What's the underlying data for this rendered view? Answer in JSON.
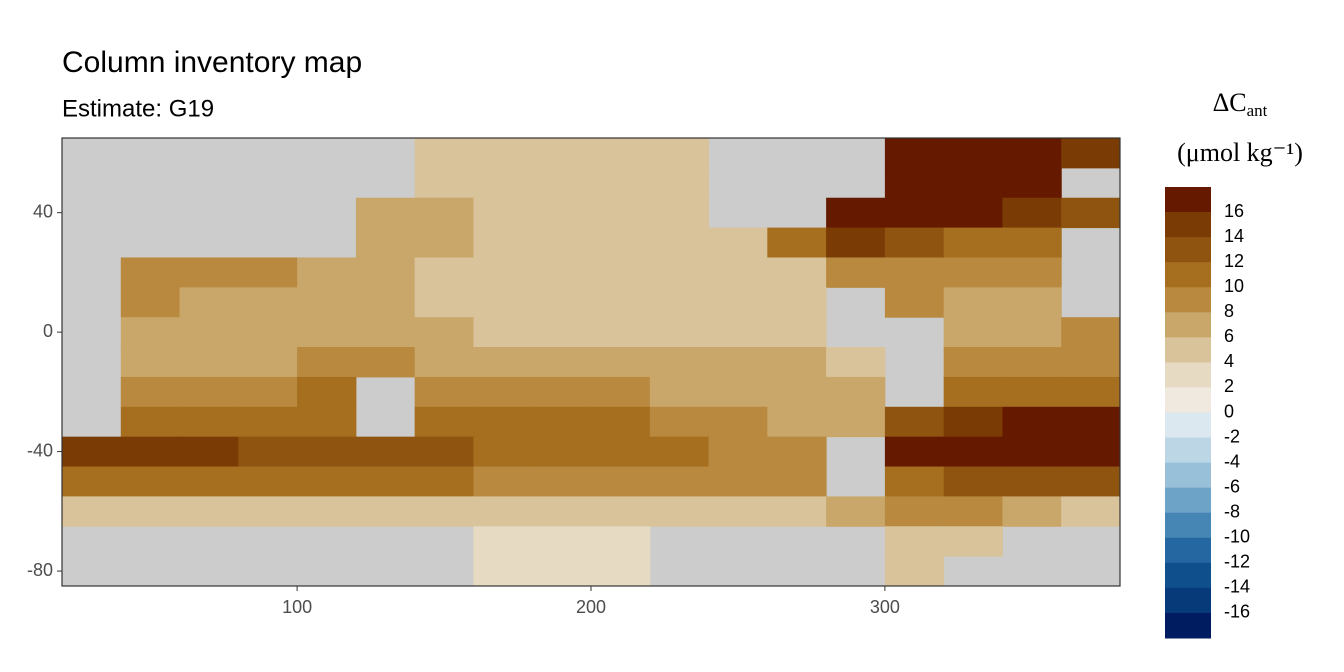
{
  "chart_data": {
    "type": "raster",
    "title": "Column inventory map",
    "subtitle": "Estimate: G19",
    "x": [
      30,
      50,
      70,
      90,
      110,
      130,
      150,
      170,
      190,
      210,
      230,
      250,
      270,
      290,
      310,
      330,
      350,
      370
    ],
    "y": [
      60,
      50,
      40,
      30,
      20,
      10,
      0,
      -10,
      -20,
      -30,
      -40,
      -50,
      -60,
      -70,
      -80
    ],
    "values": [
      [
        null,
        null,
        null,
        null,
        null,
        null,
        5,
        5,
        5,
        5,
        5,
        null,
        null,
        null,
        17,
        17,
        17,
        15
      ],
      [
        null,
        null,
        null,
        null,
        null,
        null,
        5,
        5,
        5,
        5,
        5,
        null,
        null,
        null,
        17,
        17,
        17,
        null
      ],
      [
        null,
        null,
        null,
        null,
        null,
        7,
        7,
        5,
        5,
        5,
        5,
        null,
        null,
        17,
        17,
        17,
        15,
        13
      ],
      [
        null,
        null,
        null,
        null,
        null,
        7,
        7,
        5,
        5,
        5,
        5,
        5,
        11,
        15,
        13,
        11,
        11,
        null
      ],
      [
        null,
        9,
        9,
        9,
        7,
        7,
        5,
        5,
        5,
        5,
        5,
        5,
        5,
        9,
        9,
        9,
        9,
        null
      ],
      [
        null,
        9,
        7,
        7,
        7,
        7,
        5,
        5,
        5,
        5,
        5,
        5,
        5,
        null,
        9,
        7,
        7,
        null
      ],
      [
        null,
        7,
        7,
        7,
        7,
        7,
        7,
        5,
        5,
        5,
        5,
        5,
        5,
        null,
        null,
        7,
        7,
        9
      ],
      [
        null,
        7,
        7,
        7,
        9,
        9,
        7,
        7,
        7,
        7,
        7,
        7,
        7,
        5,
        null,
        9,
        9,
        9
      ],
      [
        null,
        9,
        9,
        9,
        11,
        null,
        9,
        9,
        9,
        9,
        7,
        7,
        7,
        7,
        null,
        11,
        11,
        11
      ],
      [
        null,
        11,
        11,
        11,
        11,
        null,
        11,
        11,
        11,
        11,
        9,
        9,
        7,
        7,
        13,
        15,
        17,
        17
      ],
      [
        15,
        15,
        15,
        13,
        13,
        13,
        13,
        11,
        11,
        11,
        11,
        9,
        9,
        null,
        17,
        17,
        17,
        17
      ],
      [
        11,
        11,
        11,
        11,
        11,
        11,
        11,
        9,
        9,
        9,
        9,
        9,
        9,
        null,
        11,
        13,
        13,
        13
      ],
      [
        5,
        5,
        5,
        5,
        5,
        5,
        5,
        5,
        5,
        5,
        5,
        5,
        5,
        7,
        9,
        9,
        7,
        5
      ],
      [
        null,
        null,
        null,
        null,
        null,
        null,
        null,
        3,
        3,
        3,
        null,
        null,
        null,
        null,
        5,
        5,
        null,
        null
      ],
      [
        null,
        null,
        null,
        null,
        null,
        null,
        null,
        3,
        3,
        3,
        null,
        null,
        null,
        null,
        5,
        null,
        null,
        null
      ]
    ],
    "cell_size": [
      20,
      10
    ],
    "xlim": [
      20,
      380
    ],
    "ylim": [
      -85,
      65
    ],
    "xticks": [
      100,
      200,
      300
    ],
    "yticks": [
      40,
      0,
      -40,
      -80
    ],
    "land_color": "#cccccc",
    "legend": {
      "title_main": "ΔC",
      "title_sub": "ant",
      "title_unit": "(μmol kg⁻¹)",
      "limits": [
        -18,
        18
      ],
      "breaks": [
        16,
        14,
        12,
        10,
        8,
        6,
        4,
        2,
        0,
        -2,
        -4,
        -6,
        -8,
        -10,
        -12,
        -14,
        -16
      ],
      "colors": [
        "#651a00",
        "#7a3b05",
        "#8f5410",
        "#a56f1f",
        "#b8893e",
        "#c9a66a",
        "#d9c39a",
        "#e6dac3",
        "#efe9e0",
        "#dce8f0",
        "#bcd6e6",
        "#98c0d9",
        "#6ea3c8",
        "#4686b5",
        "#2567a0",
        "#0e4f8c",
        "#073a78",
        "#001c61"
      ]
    }
  }
}
